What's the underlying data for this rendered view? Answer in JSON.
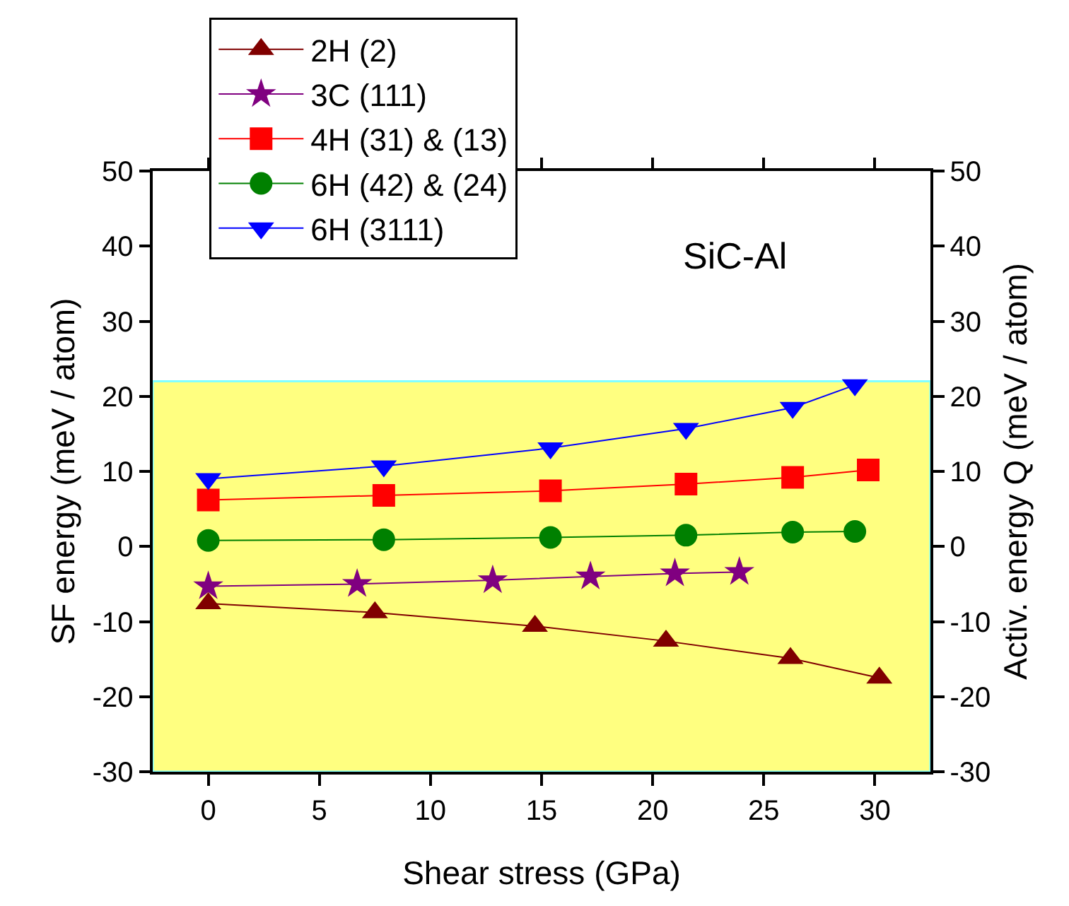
{
  "chart_data": {
    "type": "line",
    "xlabel": "Shear stress (GPa)",
    "ylabel": "SF energy (meV / atom)",
    "y2label": "Activ. energy Q (meV / atom)",
    "xlim": [
      -2.5,
      32.5
    ],
    "xticks": [
      0,
      5,
      10,
      15,
      20,
      25,
      30
    ],
    "ylim": [
      -30,
      50
    ],
    "yticks": [
      -30,
      -20,
      -10,
      0,
      10,
      20,
      30,
      40,
      50
    ],
    "y2lim": [
      -30,
      50
    ],
    "y2ticks": [
      -30,
      -20,
      -10,
      0,
      10,
      20,
      30,
      40,
      50
    ],
    "grid": false,
    "legend": "top left",
    "line_style": "solid",
    "annotations": [
      "SiC-Al"
    ],
    "bands": [
      {
        "axis": "y",
        "from": -30,
        "to": 22,
        "color": "#ffff80"
      }
    ],
    "series": [
      {
        "name": "2H (2)",
        "color": "#800000",
        "marker": "triangle",
        "x": [
          0,
          7.5,
          14.7,
          20.6,
          26.2,
          30.2
        ],
        "values": [
          -7.6,
          -8.8,
          -10.6,
          -12.6,
          -14.9,
          -17.5
        ]
      },
      {
        "name": "3C (111)",
        "color": "#800080",
        "marker": "star",
        "x": [
          0,
          6.7,
          12.8,
          17.2,
          21.0,
          23.9
        ],
        "values": [
          -5.3,
          -5.0,
          -4.5,
          -4.0,
          -3.6,
          -3.4
        ]
      },
      {
        "name": "4H (31) & (13)",
        "color": "#ff0000",
        "marker": "square",
        "x": [
          0,
          7.9,
          15.4,
          21.5,
          26.3,
          29.7
        ],
        "values": [
          6.2,
          6.8,
          7.4,
          8.3,
          9.2,
          10.2
        ]
      },
      {
        "name": "6H (42) & (24)",
        "color": "#008000",
        "marker": "circle",
        "x": [
          0,
          7.9,
          15.4,
          21.5,
          26.3,
          29.1
        ],
        "values": [
          0.8,
          0.9,
          1.2,
          1.5,
          1.9,
          2.0
        ]
      },
      {
        "name": "6H (3111)",
        "color": "#0000ff",
        "marker": "triangle-down",
        "x": [
          0,
          7.9,
          15.4,
          21.5,
          26.3,
          29.1
        ],
        "values": [
          9.0,
          10.7,
          13.1,
          15.7,
          18.5,
          21.5
        ]
      }
    ]
  }
}
